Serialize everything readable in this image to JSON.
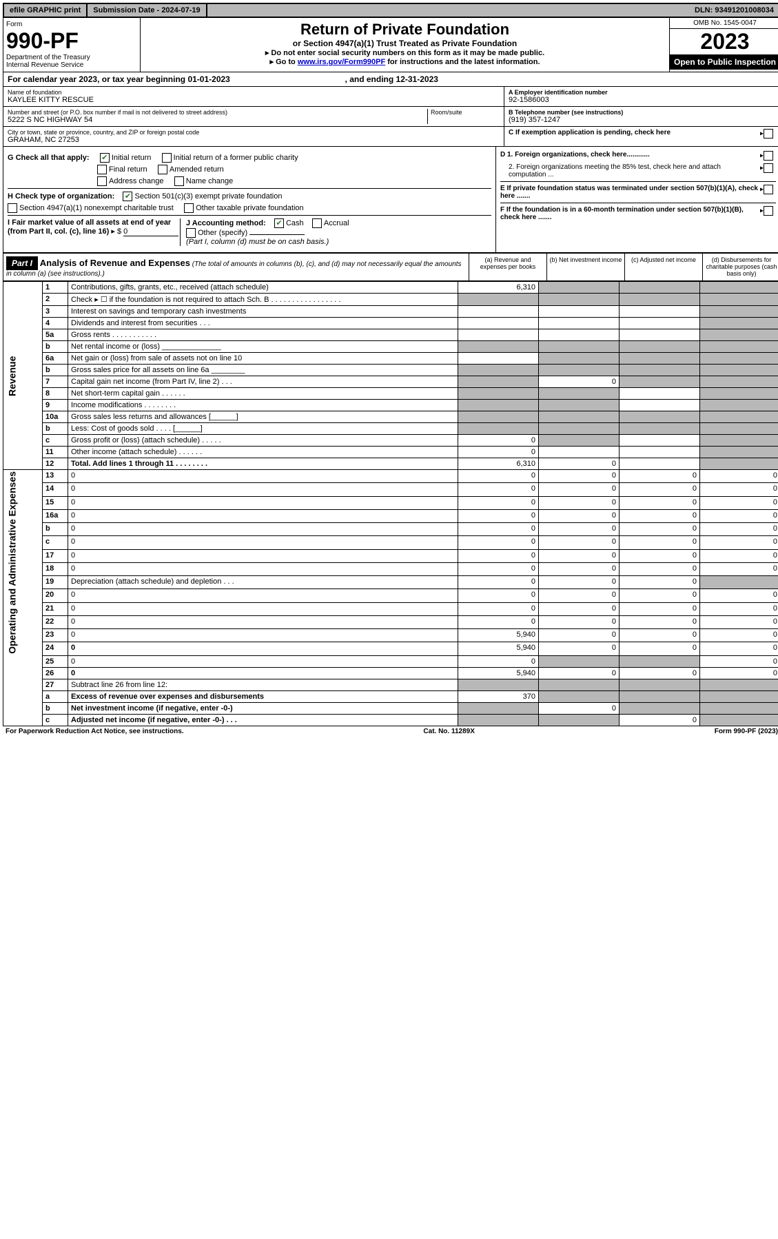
{
  "topbar": {
    "efile": "efile GRAPHIC print",
    "submission_label": "Submission Date - 2024-07-19",
    "dln": "DLN: 93491201008034"
  },
  "header": {
    "form_word": "Form",
    "form_number": "990-PF",
    "dept1": "Department of the Treasury",
    "dept2": "Internal Revenue Service",
    "title": "Return of Private Foundation",
    "subtitle": "or Section 4947(a)(1) Trust Treated as Private Foundation",
    "instr1": "Do not enter social security numbers on this form as it may be made public.",
    "instr2_pre": "Go to ",
    "instr2_link": "www.irs.gov/Form990PF",
    "instr2_post": " for instructions and the latest information.",
    "omb": "OMB No. 1545-0047",
    "year": "2023",
    "open": "Open to Public Inspection"
  },
  "calyear": {
    "text_pre": "For calendar year 2023, or tax year beginning ",
    "begin": "01-01-2023",
    "text_mid": " , and ending ",
    "end": "12-31-2023"
  },
  "entity": {
    "name_label": "Name of foundation",
    "name": "KAYLEE KITTY RESCUE",
    "addr_label": "Number and street (or P.O. box number if mail is not delivered to street address)",
    "room_label": "Room/suite",
    "addr": "5222 S NC HIGHWAY 54",
    "city_label": "City or town, state or province, country, and ZIP or foreign postal code",
    "city": "GRAHAM, NC  27253",
    "ein_label": "A Employer identification number",
    "ein": "92-1586003",
    "phone_label": "B Telephone number (see instructions)",
    "phone": "(919) 357-1247",
    "c_label": "C If exemption application is pending, check here",
    "d1": "D 1. Foreign organizations, check here............",
    "d2": "2. Foreign organizations meeting the 85% test, check here and attach computation ...",
    "e": "E  If private foundation status was terminated under section 507(b)(1)(A), check here .......",
    "f": "F  If the foundation is in a 60-month termination under section 507(b)(1)(B), check here .......",
    "g_label": "G Check all that apply:",
    "g_opts": [
      "Initial return",
      "Initial return of a former public charity",
      "Final return",
      "Amended return",
      "Address change",
      "Name change"
    ],
    "h_label": "H Check type of organization:",
    "h_opts": [
      "Section 501(c)(3) exempt private foundation",
      "Section 4947(a)(1) nonexempt charitable trust",
      "Other taxable private foundation"
    ],
    "i_label": "I Fair market value of all assets at end of year (from Part II, col. (c), line 16)",
    "i_value_prefix": "▸ $",
    "i_value": "0",
    "j_label": "J Accounting method:",
    "j_opts": [
      "Cash",
      "Accrual",
      "Other (specify)"
    ],
    "j_note": "(Part I, column (d) must be on cash basis.)"
  },
  "part1": {
    "label": "Part I",
    "title": "Analysis of Revenue and Expenses",
    "title_note": "(The total of amounts in columns (b), (c), and (d) may not necessarily equal the amounts in column (a) (see instructions).)",
    "cols": {
      "a": "(a)  Revenue and expenses per books",
      "b": "(b)  Net investment income",
      "c": "(c)  Adjusted net income",
      "d": "(d)  Disbursements for charitable purposes (cash basis only)"
    }
  },
  "side_labels": {
    "revenue": "Revenue",
    "expenses": "Operating and Administrative Expenses"
  },
  "lines": [
    {
      "n": "1",
      "d": "Contributions, gifts, grants, etc., received (attach schedule)",
      "a": "6,310",
      "shade": [
        "b",
        "c",
        "d"
      ]
    },
    {
      "n": "2",
      "d": "Check ▸ ☐ if the foundation is not required to attach Sch. B   .  .  .  .  .  .  .  .  .  .  .  .  .  .  .  .  .",
      "shade": [
        "a",
        "b",
        "c",
        "d"
      ]
    },
    {
      "n": "3",
      "d": "Interest on savings and temporary cash investments",
      "shade": [
        "d"
      ]
    },
    {
      "n": "4",
      "d": "Dividends and interest from securities   .   .   .",
      "shade": [
        "d"
      ]
    },
    {
      "n": "5a",
      "d": "Gross rents   .   .   .   .   .   .   .   .   .   .   .",
      "shade": [
        "d"
      ]
    },
    {
      "n": "b",
      "d": "Net rental income or (loss)  ______________",
      "shade": [
        "a",
        "b",
        "c",
        "d"
      ]
    },
    {
      "n": "6a",
      "d": "Net gain or (loss) from sale of assets not on line 10",
      "shade": [
        "b",
        "c",
        "d"
      ]
    },
    {
      "n": "b",
      "d": "Gross sales price for all assets on line 6a ________",
      "shade": [
        "a",
        "b",
        "c",
        "d"
      ]
    },
    {
      "n": "7",
      "d": "Capital gain net income (from Part IV, line 2)   .   .   .",
      "b": "0",
      "shade": [
        "a",
        "c",
        "d"
      ]
    },
    {
      "n": "8",
      "d": "Net short-term capital gain   .   .   .   .   .   .",
      "shade": [
        "a",
        "b",
        "d"
      ]
    },
    {
      "n": "9",
      "d": "Income modifications   .   .   .   .   .   .   .   .",
      "shade": [
        "a",
        "b",
        "d"
      ]
    },
    {
      "n": "10a",
      "d": "Gross sales less returns and allowances  [______]",
      "shade": [
        "a",
        "b",
        "c",
        "d"
      ]
    },
    {
      "n": "b",
      "d": "Less: Cost of goods sold    .   .   .   .  [______]",
      "shade": [
        "a",
        "b",
        "c",
        "d"
      ]
    },
    {
      "n": "c",
      "d": "Gross profit or (loss) (attach schedule)   .   .   .   .   .",
      "a": "0",
      "shade": [
        "b",
        "d"
      ]
    },
    {
      "n": "11",
      "d": "Other income (attach schedule)    .   .   .   .   .   .",
      "a": "0",
      "shade": [
        "d"
      ]
    },
    {
      "n": "12",
      "d": "Total. Add lines 1 through 11   .   .   .   .   .   .   .   .",
      "a": "6,310",
      "b": "0",
      "shade": [
        "d"
      ],
      "bold": true
    },
    {
      "n": "13",
      "d": "0",
      "a": "0",
      "b": "0",
      "c": "0"
    },
    {
      "n": "14",
      "d": "0",
      "a": "0",
      "b": "0",
      "c": "0"
    },
    {
      "n": "15",
      "d": "0",
      "a": "0",
      "b": "0",
      "c": "0"
    },
    {
      "n": "16a",
      "d": "0",
      "a": "0",
      "b": "0",
      "c": "0"
    },
    {
      "n": "b",
      "d": "0",
      "a": "0",
      "b": "0",
      "c": "0"
    },
    {
      "n": "c",
      "d": "0",
      "a": "0",
      "b": "0",
      "c": "0"
    },
    {
      "n": "17",
      "d": "0",
      "a": "0",
      "b": "0",
      "c": "0"
    },
    {
      "n": "18",
      "d": "0",
      "a": "0",
      "b": "0",
      "c": "0"
    },
    {
      "n": "19",
      "d": "Depreciation (attach schedule) and depletion    .   .   .",
      "a": "0",
      "b": "0",
      "c": "0",
      "shade": [
        "d"
      ]
    },
    {
      "n": "20",
      "d": "0",
      "a": "0",
      "b": "0",
      "c": "0"
    },
    {
      "n": "21",
      "d": "0",
      "a": "0",
      "b": "0",
      "c": "0"
    },
    {
      "n": "22",
      "d": "0",
      "a": "0",
      "b": "0",
      "c": "0"
    },
    {
      "n": "23",
      "d": "0",
      "a": "5,940",
      "b": "0",
      "c": "0"
    },
    {
      "n": "24",
      "d": "0",
      "a": "5,940",
      "b": "0",
      "c": "0",
      "bold": true
    },
    {
      "n": "25",
      "d": "0",
      "a": "0",
      "shade": [
        "b",
        "c"
      ]
    },
    {
      "n": "26",
      "d": "0",
      "a": "5,940",
      "b": "0",
      "c": "0",
      "bold": true
    },
    {
      "n": "27",
      "d": "Subtract line 26 from line 12:",
      "shade": [
        "a",
        "b",
        "c",
        "d"
      ]
    },
    {
      "n": "a",
      "d": "Excess of revenue over expenses and disbursements",
      "a": "370",
      "shade": [
        "b",
        "c",
        "d"
      ],
      "bold": true
    },
    {
      "n": "b",
      "d": "Net investment income (if negative, enter -0-)",
      "b": "0",
      "shade": [
        "a",
        "c",
        "d"
      ],
      "bold": true
    },
    {
      "n": "c",
      "d": "Adjusted net income (if negative, enter -0-)   .   .   .",
      "c": "0",
      "shade": [
        "a",
        "b",
        "d"
      ],
      "bold": true
    }
  ],
  "footer": {
    "left": "For Paperwork Reduction Act Notice, see instructions.",
    "mid": "Cat. No. 11289X",
    "right": "Form 990-PF (2023)"
  }
}
